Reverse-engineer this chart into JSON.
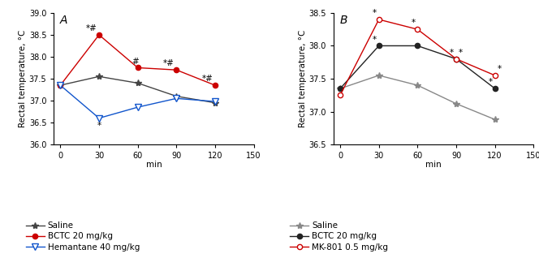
{
  "xvals": [
    0,
    30,
    60,
    90,
    120
  ],
  "panel_A": {
    "title": "A",
    "ylim": [
      36.0,
      39.0
    ],
    "yticks": [
      36.0,
      36.5,
      37.0,
      37.5,
      38.0,
      38.5,
      39.0
    ],
    "ylabel": "Rectal temperature, °C",
    "saline": [
      37.35,
      37.55,
      37.4,
      37.1,
      36.95
    ],
    "bctc": [
      37.35,
      38.5,
      37.75,
      37.7,
      37.35
    ],
    "hemantane": [
      37.35,
      36.6,
      36.85,
      37.05,
      36.98
    ],
    "saline_color": "#444444",
    "bctc_color": "#cc0000",
    "hemantane_color": "#1155cc",
    "legend_labels": [
      "Saline",
      "BCTC 20 mg/kg",
      "Hemantane 40 mg/kg"
    ]
  },
  "panel_B": {
    "title": "B",
    "ylim": [
      36.5,
      38.5
    ],
    "yticks": [
      36.5,
      37.0,
      37.5,
      38.0,
      38.5
    ],
    "ylabel": "Rectal temperature, °C",
    "saline": [
      37.35,
      37.55,
      37.4,
      37.12,
      36.88
    ],
    "bctc": [
      37.35,
      38.0,
      38.0,
      37.8,
      37.35
    ],
    "mk801": [
      37.25,
      38.4,
      38.25,
      37.8,
      37.55
    ],
    "saline_color": "#888888",
    "bctc_color": "#222222",
    "mk801_color": "#cc0000",
    "legend_labels": [
      "Saline",
      "BCTC 20 mg/kg",
      "MK-801 0.5 mg/kg"
    ]
  },
  "xlabel": "min",
  "fontsize_tick": 7,
  "fontsize_label": 7.5,
  "fontsize_legend": 7.5,
  "fontsize_panel": 10
}
